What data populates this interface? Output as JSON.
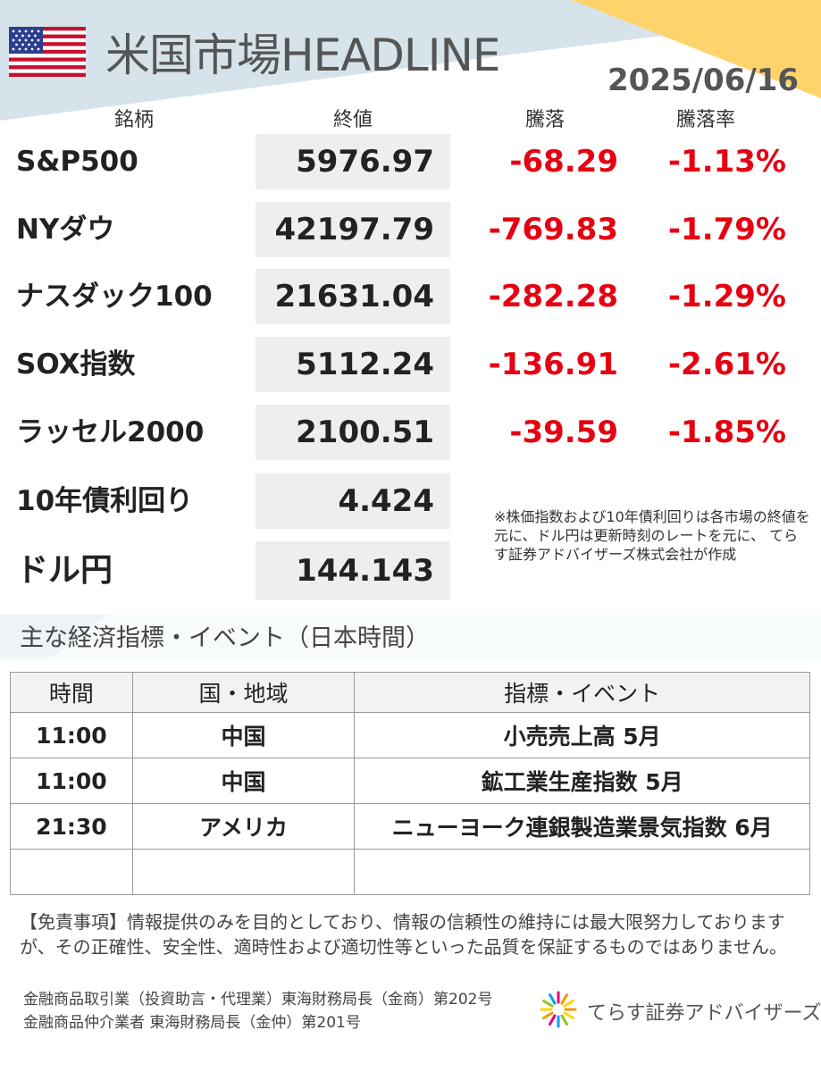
{
  "header": {
    "title": "米国市場HEADLINE",
    "date": "2025/06/16",
    "flag_icon": "us-flag-icon"
  },
  "market": {
    "columns": [
      "銘柄",
      "終値",
      "騰落",
      "騰落率"
    ],
    "rows": [
      {
        "name": "S&P500",
        "close": "5976.97",
        "change": "-68.29",
        "pct": "-1.13%"
      },
      {
        "name": "NYダウ",
        "close": "42197.79",
        "change": "-769.83",
        "pct": "-1.79%"
      },
      {
        "name": "ナスダック100",
        "close": "21631.04",
        "change": "-282.28",
        "pct": "-1.29%"
      },
      {
        "name": "SOX指数",
        "close": "5112.24",
        "change": "-136.91",
        "pct": "-2.61%"
      },
      {
        "name": "ラッセル2000",
        "close": "2100.51",
        "change": "-39.59",
        "pct": "-1.85%"
      },
      {
        "name": "10年債利回り",
        "close": "4.424"
      },
      {
        "name": "ドル円",
        "close": "144.143"
      }
    ],
    "note": "※株価指数および10年債利回りは各市場の終値を元に、ドル円は更新時刻のレートを元に、 てらす証券アドバイザーズ株式会社が作成"
  },
  "events": {
    "title": "主な経済指標・イベント（日本時間）",
    "columns": [
      "時間",
      "国・地域",
      "指標・イベント"
    ],
    "rows": [
      {
        "time": "11:00",
        "region": "中国",
        "event": "小売売上高 5月"
      },
      {
        "time": "11:00",
        "region": "中国",
        "event": "鉱工業生産指数 5月"
      },
      {
        "time": "21:30",
        "region": "アメリカ",
        "event": "ニューヨーク連銀製造業景気指数 6月"
      }
    ]
  },
  "footer": {
    "disclaimer": "【免責事項】情報提供のみを目的としており、情報の信頼性の維持には最大限努力しておりますが、その正確性、安全性、適時性および適切性等といった品質を保証するものではありません。",
    "registration_1": "金融商品取引業（投資助言・代理業）東海財務局長（金商）第202号",
    "registration_2": "金融商品仲介業者 東海財務局長（金仲）第201号",
    "logo_text": "てらす証券アドバイザーズ"
  },
  "colors": {
    "negative": "#e60012",
    "band_blue": "#d6e3ea",
    "band_yellow": "#ffd36b",
    "value_box": "#eeeeee"
  }
}
